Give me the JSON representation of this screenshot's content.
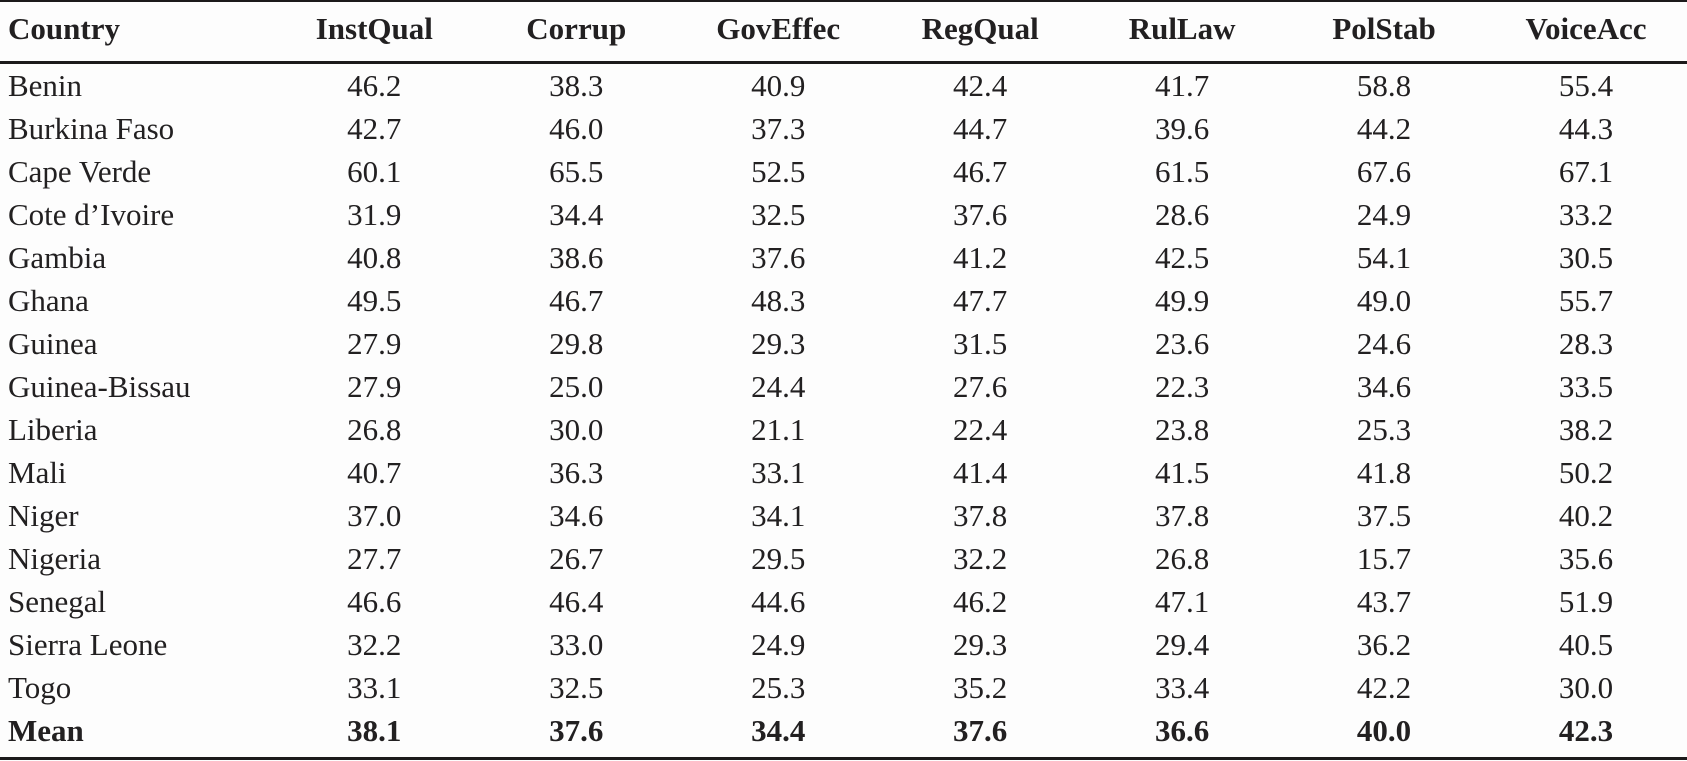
{
  "page": {
    "background": "#fdfdfd",
    "text_color": "#222021",
    "rule_color": "#1c1a1b"
  },
  "table": {
    "columns": [
      "Country",
      "InstQual",
      "Corrup",
      "GovEffec",
      "RegQual",
      "RulLaw",
      "PolStab",
      "VoiceAcc"
    ],
    "rows": [
      {
        "country": "Benin",
        "values": [
          "46.2",
          "38.3",
          "40.9",
          "42.4",
          "41.7",
          "58.8",
          "55.4"
        ],
        "bold": false
      },
      {
        "country": "Burkina Faso",
        "values": [
          "42.7",
          "46.0",
          "37.3",
          "44.7",
          "39.6",
          "44.2",
          "44.3"
        ],
        "bold": false
      },
      {
        "country": "Cape Verde",
        "values": [
          "60.1",
          "65.5",
          "52.5",
          "46.7",
          "61.5",
          "67.6",
          "67.1"
        ],
        "bold": false
      },
      {
        "country": "Cote d’Ivoire",
        "values": [
          "31.9",
          "34.4",
          "32.5",
          "37.6",
          "28.6",
          "24.9",
          "33.2"
        ],
        "bold": false
      },
      {
        "country": "Gambia",
        "values": [
          "40.8",
          "38.6",
          "37.6",
          "41.2",
          "42.5",
          "54.1",
          "30.5"
        ],
        "bold": false
      },
      {
        "country": "Ghana",
        "values": [
          "49.5",
          "46.7",
          "48.3",
          "47.7",
          "49.9",
          "49.0",
          "55.7"
        ],
        "bold": false
      },
      {
        "country": "Guinea",
        "values": [
          "27.9",
          "29.8",
          "29.3",
          "31.5",
          "23.6",
          "24.6",
          "28.3"
        ],
        "bold": false
      },
      {
        "country": "Guinea-Bissau",
        "values": [
          "27.9",
          "25.0",
          "24.4",
          "27.6",
          "22.3",
          "34.6",
          "33.5"
        ],
        "bold": false
      },
      {
        "country": "Liberia",
        "values": [
          "26.8",
          "30.0",
          "21.1",
          "22.4",
          "23.8",
          "25.3",
          "38.2"
        ],
        "bold": false
      },
      {
        "country": "Mali",
        "values": [
          "40.7",
          "36.3",
          "33.1",
          "41.4",
          "41.5",
          "41.8",
          "50.2"
        ],
        "bold": false
      },
      {
        "country": "Niger",
        "values": [
          "37.0",
          "34.6",
          "34.1",
          "37.8",
          "37.8",
          "37.5",
          "40.2"
        ],
        "bold": false
      },
      {
        "country": "Nigeria",
        "values": [
          "27.7",
          "26.7",
          "29.5",
          "32.2",
          "26.8",
          "15.7",
          "35.6"
        ],
        "bold": false
      },
      {
        "country": "Senegal",
        "values": [
          "46.6",
          "46.4",
          "44.6",
          "46.2",
          "47.1",
          "43.7",
          "51.9"
        ],
        "bold": false
      },
      {
        "country": "Sierra Leone",
        "values": [
          "32.2",
          "33.0",
          "24.9",
          "29.3",
          "29.4",
          "36.2",
          "40.5"
        ],
        "bold": false
      },
      {
        "country": "Togo",
        "values": [
          "33.1",
          "32.5",
          "25.3",
          "35.2",
          "33.4",
          "42.2",
          "30.0"
        ],
        "bold": false
      },
      {
        "country": "Mean",
        "values": [
          "38.1",
          "37.6",
          "34.4",
          "37.6",
          "36.6",
          "40.0",
          "42.3"
        ],
        "bold": true
      }
    ]
  }
}
